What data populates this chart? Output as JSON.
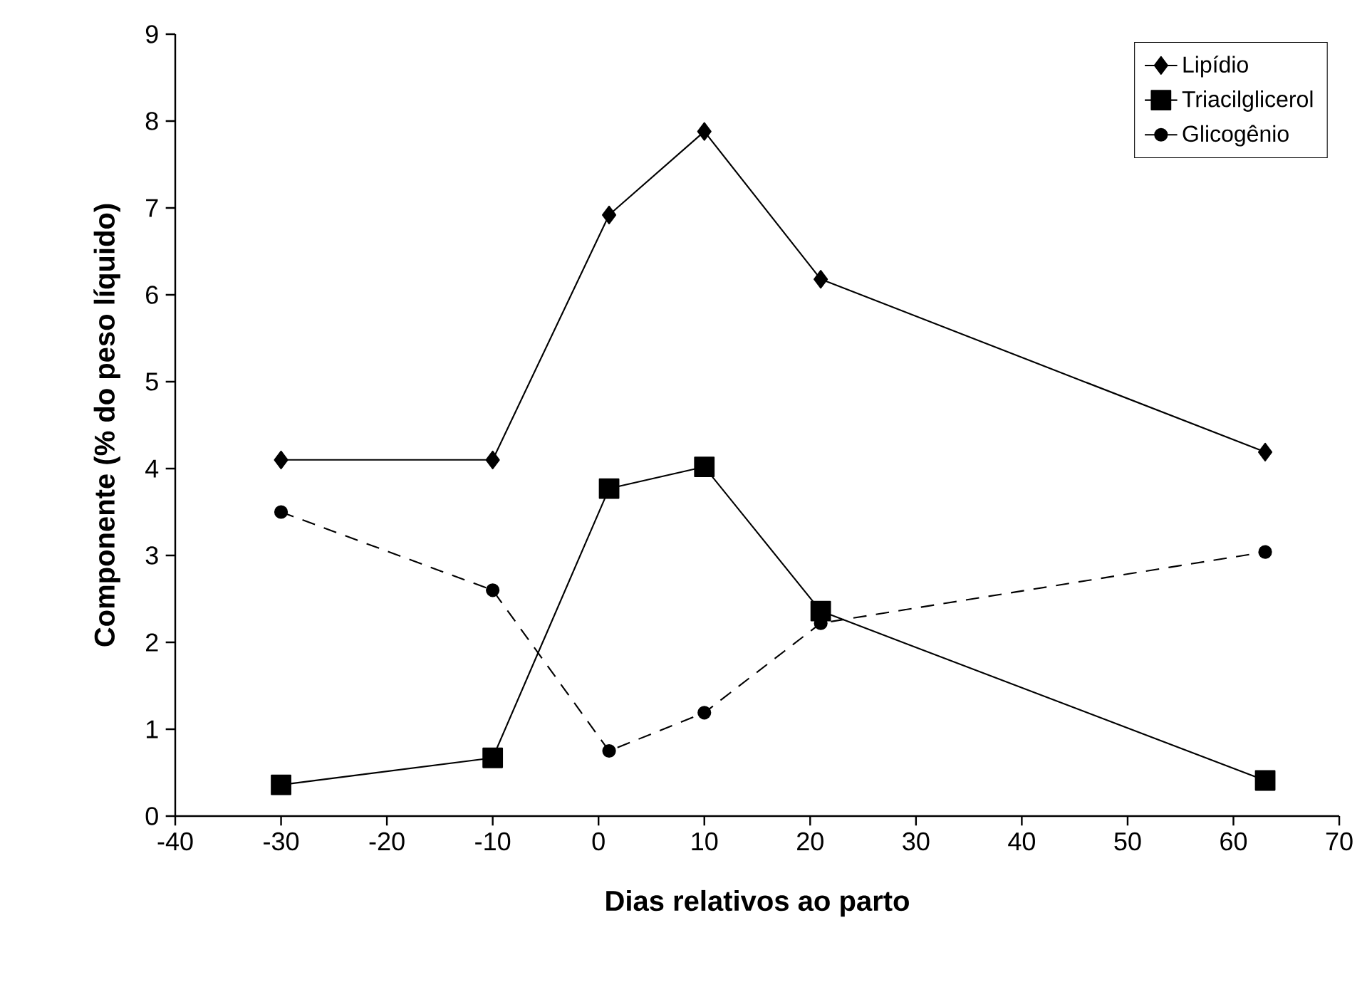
{
  "chart_data": {
    "type": "line",
    "xlabel": "Dias relativos ao parto",
    "ylabel": "Componente (% do peso líquido)",
    "x": [
      -30,
      -10,
      1,
      10,
      21,
      63
    ],
    "series": [
      {
        "name": "Lipídio",
        "color": "#000000",
        "marker": "diamond",
        "line_style": "solid",
        "values": [
          4.1,
          4.1,
          6.92,
          7.88,
          6.18,
          4.19
        ]
      },
      {
        "name": "Triacilglicerol",
        "color": "#000000",
        "marker": "square",
        "line_style": "solid",
        "values": [
          0.36,
          0.67,
          3.77,
          4.02,
          2.36,
          0.41
        ]
      },
      {
        "name": "Glicogênio",
        "color": "#000000",
        "marker": "circle",
        "line_style": "dashed",
        "values": [
          3.5,
          2.6,
          0.75,
          1.19,
          2.22,
          3.04
        ]
      }
    ],
    "xlim": [
      -40,
      70
    ],
    "xticks": [
      -40,
      -30,
      -20,
      -10,
      0,
      10,
      20,
      30,
      40,
      50,
      60,
      70
    ],
    "ylim": [
      0,
      9
    ],
    "yticks": [
      0,
      1,
      2,
      3,
      4,
      5,
      6,
      7,
      8,
      9
    ],
    "grid": false,
    "legend": "top right"
  }
}
